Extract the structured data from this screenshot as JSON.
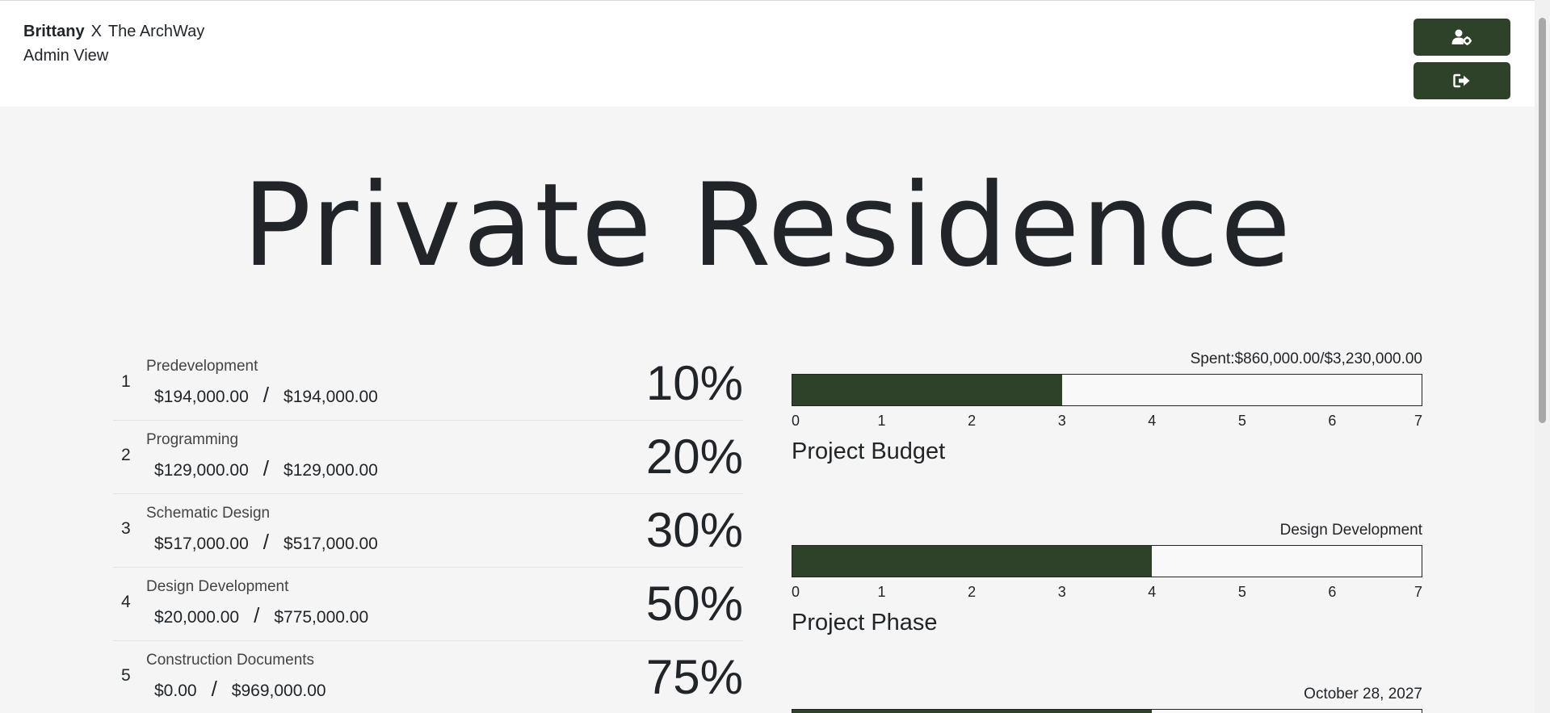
{
  "header": {
    "client_name": "Brittany",
    "separator": "X",
    "firm_name": "The ArchWay",
    "view_label": "Admin View"
  },
  "project": {
    "title": "Private Residence"
  },
  "phases": [
    {
      "num": "1",
      "name": "Predevelopment",
      "spent": "$194,000.00",
      "sep": "/",
      "budget": "$194,000.00",
      "pct": "10%"
    },
    {
      "num": "2",
      "name": "Programming",
      "spent": "$129,000.00",
      "sep": "/",
      "budget": "$129,000.00",
      "pct": "20%"
    },
    {
      "num": "3",
      "name": "Schematic Design",
      "spent": "$517,000.00",
      "sep": "/",
      "budget": "$517,000.00",
      "pct": "30%"
    },
    {
      "num": "4",
      "name": "Design Development",
      "spent": "$20,000.00",
      "sep": "/",
      "budget": "$775,000.00",
      "pct": "50%"
    },
    {
      "num": "5",
      "name": "Construction Documents",
      "spent": "$0.00",
      "sep": "/",
      "budget": "$969,000.00",
      "pct": "75%"
    }
  ],
  "progress_panels": {
    "budget": {
      "caption": "Spent:$860,000.00/$3,230,000.00",
      "label": "Project Budget",
      "value": 3,
      "max": 7,
      "ticks": [
        "0",
        "1",
        "2",
        "3",
        "4",
        "5",
        "6",
        "7"
      ]
    },
    "phase": {
      "caption": "Design Development",
      "label": "Project Phase",
      "value": 4,
      "max": 7,
      "ticks": [
        "0",
        "1",
        "2",
        "3",
        "4",
        "5",
        "6",
        "7"
      ]
    },
    "date": {
      "caption": "October 28, 2027",
      "value": 4,
      "max": 7
    }
  },
  "colors": {
    "accent": "#2e4129",
    "background": "#f5f5f5",
    "header_bg": "#ffffff"
  },
  "icons": {
    "user_settings": "user-gear-icon",
    "logout": "sign-out-icon"
  }
}
